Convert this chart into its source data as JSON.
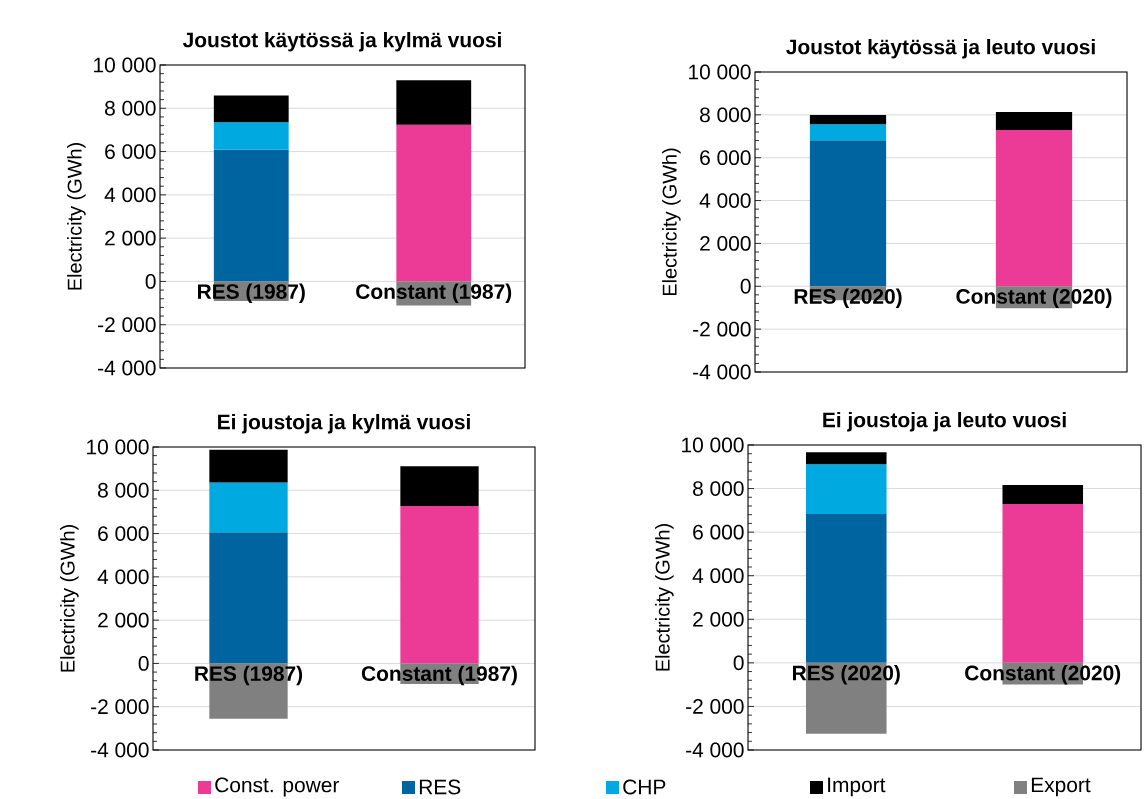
{
  "chart_data": [
    {
      "type": "bar",
      "stacked": true,
      "title": "Joustot käytössä ja kylmä vuosi",
      "ylabel": "Electricity (GWh)",
      "categories": [
        "RES (1987)",
        "Constant (1987)"
      ],
      "ylim": [
        -4000,
        10000
      ],
      "yticks": [
        {
          "value": -4000,
          "label": "-4 000"
        },
        {
          "value": -2000,
          "label": "-2 000"
        },
        0,
        {
          "value": 2000,
          "label": "2 000"
        },
        {
          "value": 4000,
          "label": "4 000"
        },
        {
          "value": 6000,
          "label": "6 000"
        },
        {
          "value": 8000,
          "label": "8 000"
        },
        {
          "value": 10000,
          "label": "10 000"
        }
      ],
      "grid": "y",
      "series": [
        {
          "color": "#ec3b96",
          "values": [
            null,
            7240
          ]
        },
        {
          "color": "#0064a0",
          "values": [
            6080,
            null
          ]
        },
        {
          "color": "#00a9e0",
          "values": [
            1270,
            null
          ]
        },
        {
          "color": "#000000",
          "values": [
            1240,
            2050
          ]
        },
        {
          "color": "#808080",
          "values": [
            -910,
            -1110
          ]
        }
      ]
    },
    {
      "type": "bar",
      "stacked": true,
      "title": "Joustot käytössä ja leuto vuosi",
      "ylabel": "Electricity (GWh)",
      "categories": [
        "RES (2020)",
        "Constant (2020)"
      ],
      "ylim": [
        -4000,
        10000
      ],
      "yticks": [
        {
          "value": -4000,
          "label": "-4 000"
        },
        {
          "value": -2000,
          "label": "-2 000"
        },
        0,
        {
          "value": 2000,
          "label": "2 000"
        },
        {
          "value": 4000,
          "label": "4 000"
        },
        {
          "value": 6000,
          "label": "6 000"
        },
        {
          "value": 8000,
          "label": "8 000"
        },
        {
          "value": 10000,
          "label": "10 000"
        }
      ],
      "grid": "y",
      "series": [
        {
          "color": "#ec3b96",
          "values": [
            null,
            7290
          ]
        },
        {
          "color": "#0064a0",
          "values": [
            6820,
            null
          ]
        },
        {
          "color": "#00a9e0",
          "values": [
            740,
            null
          ]
        },
        {
          "color": "#000000",
          "values": [
            430,
            840
          ]
        },
        {
          "color": "#808080",
          "values": [
            -650,
            -1020
          ]
        }
      ]
    },
    {
      "type": "bar",
      "stacked": true,
      "title": "Ei joustoja ja kylmä vuosi",
      "ylabel": "Electricity (GWh)",
      "categories": [
        "RES (1987)",
        "Constant (1987)"
      ],
      "ylim": [
        -4000,
        10000
      ],
      "yticks": [
        {
          "value": -4000,
          "label": "-4 000"
        },
        {
          "value": -2000,
          "label": "-2 000"
        },
        0,
        {
          "value": 2000,
          "label": "2 000"
        },
        {
          "value": 4000,
          "label": "4 000"
        },
        {
          "value": 6000,
          "label": "6 000"
        },
        {
          "value": 8000,
          "label": "8 000"
        },
        {
          "value": 10000,
          "label": "10 000"
        }
      ],
      "grid": "y",
      "series": [
        {
          "color": "#ec3b96",
          "values": [
            null,
            7270
          ]
        },
        {
          "color": "#0064a0",
          "values": [
            6060,
            null
          ]
        },
        {
          "color": "#00a9e0",
          "values": [
            2300,
            null
          ]
        },
        {
          "color": "#000000",
          "values": [
            1510,
            1840
          ]
        },
        {
          "color": "#808080",
          "values": [
            -2560,
            -950
          ]
        }
      ]
    },
    {
      "type": "bar",
      "stacked": true,
      "title": "Ei joustoja ja leuto vuosi",
      "ylabel": "Electricity (GWh)",
      "categories": [
        "RES (2020)",
        "Constant (2020)"
      ],
      "ylim": [
        -4000,
        10000
      ],
      "yticks": [
        {
          "value": -4000,
          "label": "-4 000"
        },
        {
          "value": -2000,
          "label": "-2 000"
        },
        0,
        {
          "value": 2000,
          "label": "2 000"
        },
        {
          "value": 4000,
          "label": "4 000"
        },
        {
          "value": 6000,
          "label": "6 000"
        },
        {
          "value": 8000,
          "label": "8 000"
        },
        {
          "value": 10000,
          "label": "10 000"
        }
      ],
      "grid": "y",
      "legend": "bottom",
      "series": [
        {
          "name": "Const. power",
          "color": "#ec3b96",
          "values": [
            null,
            7290
          ]
        },
        {
          "name": "RES",
          "color": "#0064a0",
          "values": [
            6830,
            null
          ]
        },
        {
          "name": "CHP",
          "color": "#00a9e0",
          "values": [
            2290,
            null
          ]
        },
        {
          "name": "Import",
          "color": "#000000",
          "values": [
            545,
            875
          ]
        },
        {
          "name": "Export",
          "color": "#808080",
          "values": [
            -3250,
            -990
          ]
        }
      ]
    }
  ]
}
